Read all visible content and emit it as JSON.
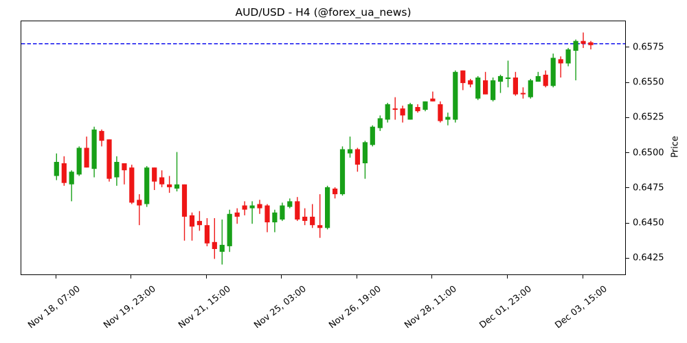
{
  "chart_data": {
    "type": "candlestick",
    "title": "AUD/USD - H4 (@forex_ua_news)",
    "symbol": "AUD/USD",
    "timeframe": "H4",
    "source_handle": "@forex_ua_news",
    "ylabel": "Price",
    "ylim": [
      0.6413,
      0.6594
    ],
    "y_ticks": [
      0.6425,
      0.645,
      0.6475,
      0.65,
      0.6525,
      0.655,
      0.6575
    ],
    "x_ticks": [
      {
        "candle_index": 0,
        "label": "Nov 18, 07:00"
      },
      {
        "candle_index": 10,
        "label": "Nov 19, 23:00"
      },
      {
        "candle_index": 20,
        "label": "Nov 21, 15:00"
      },
      {
        "candle_index": 30,
        "label": "Nov 25, 03:00"
      },
      {
        "candle_index": 40,
        "label": "Nov 26, 19:00"
      },
      {
        "candle_index": 50,
        "label": "Nov 28, 11:00"
      },
      {
        "candle_index": 60,
        "label": "Dec 01, 23:00"
      },
      {
        "candle_index": 70,
        "label": "Dec 03, 15:00"
      }
    ],
    "hline": {
      "price": 0.6578,
      "style": "dashed",
      "color": "#0d0dee"
    },
    "colors": {
      "up": "#18a018",
      "down": "#ee1616",
      "axis": "#000000"
    },
    "grid": false,
    "legend": null,
    "ohlc_order": "open,high,low,close",
    "candles": [
      [
        0.6484,
        0.65,
        0.6481,
        0.6494
      ],
      [
        0.6493,
        0.6498,
        0.6477,
        0.6479
      ],
      [
        0.6478,
        0.6488,
        0.6466,
        0.6487
      ],
      [
        0.6485,
        0.6505,
        0.6484,
        0.6504
      ],
      [
        0.6504,
        0.6512,
        0.649,
        0.649
      ],
      [
        0.6489,
        0.6519,
        0.6483,
        0.6517
      ],
      [
        0.6516,
        0.6517,
        0.6505,
        0.6509
      ],
      [
        0.651,
        0.651,
        0.648,
        0.6482
      ],
      [
        0.6483,
        0.6498,
        0.6477,
        0.6494
      ],
      [
        0.6493,
        0.6493,
        0.6478,
        0.6488
      ],
      [
        0.649,
        0.6492,
        0.6464,
        0.6465
      ],
      [
        0.6467,
        0.6471,
        0.6449,
        0.6463
      ],
      [
        0.6464,
        0.6491,
        0.6462,
        0.649
      ],
      [
        0.649,
        0.649,
        0.6474,
        0.648
      ],
      [
        0.6483,
        0.6488,
        0.6476,
        0.6478
      ],
      [
        0.6478,
        0.6484,
        0.6472,
        0.6476
      ],
      [
        0.6475,
        0.6501,
        0.6473,
        0.6478
      ],
      [
        0.6478,
        0.6478,
        0.6438,
        0.6455
      ],
      [
        0.6456,
        0.6458,
        0.6438,
        0.6448
      ],
      [
        0.6452,
        0.6459,
        0.6445,
        0.6449
      ],
      [
        0.6449,
        0.6454,
        0.6434,
        0.6436
      ],
      [
        0.6437,
        0.6454,
        0.6425,
        0.6432
      ],
      [
        0.643,
        0.6453,
        0.6421,
        0.6435
      ],
      [
        0.6434,
        0.646,
        0.643,
        0.6457
      ],
      [
        0.6458,
        0.6461,
        0.645,
        0.6455
      ],
      [
        0.6463,
        0.6466,
        0.6456,
        0.646
      ],
      [
        0.6461,
        0.6466,
        0.645,
        0.6463
      ],
      [
        0.6464,
        0.6467,
        0.6457,
        0.6461
      ],
      [
        0.6463,
        0.6464,
        0.6444,
        0.6451
      ],
      [
        0.6451,
        0.646,
        0.6444,
        0.6458
      ],
      [
        0.6453,
        0.6465,
        0.6452,
        0.6463
      ],
      [
        0.6462,
        0.6468,
        0.6461,
        0.6466
      ],
      [
        0.6466,
        0.6469,
        0.6452,
        0.6453
      ],
      [
        0.6455,
        0.6461,
        0.6449,
        0.6452
      ],
      [
        0.6455,
        0.6464,
        0.6447,
        0.6449
      ],
      [
        0.6449,
        0.6471,
        0.644,
        0.6447
      ],
      [
        0.6447,
        0.6477,
        0.6446,
        0.6476
      ],
      [
        0.6475,
        0.6476,
        0.6468,
        0.6471
      ],
      [
        0.6471,
        0.6505,
        0.647,
        0.6503
      ],
      [
        0.65,
        0.6512,
        0.6497,
        0.6503
      ],
      [
        0.6503,
        0.6504,
        0.6487,
        0.6492
      ],
      [
        0.6493,
        0.6509,
        0.6482,
        0.6508
      ],
      [
        0.6506,
        0.652,
        0.6505,
        0.6519
      ],
      [
        0.6518,
        0.6527,
        0.6516,
        0.6525
      ],
      [
        0.6524,
        0.6536,
        0.6522,
        0.6535
      ],
      [
        0.6532,
        0.654,
        0.6524,
        0.6531
      ],
      [
        0.6532,
        0.6534,
        0.6522,
        0.6527
      ],
      [
        0.6524,
        0.6536,
        0.6524,
        0.6535
      ],
      [
        0.6533,
        0.6535,
        0.6529,
        0.653
      ],
      [
        0.6531,
        0.6537,
        0.653,
        0.6537
      ],
      [
        0.6539,
        0.6544,
        0.6537,
        0.6537
      ],
      [
        0.6535,
        0.6537,
        0.6522,
        0.6523
      ],
      [
        0.6524,
        0.6529,
        0.652,
        0.6526
      ],
      [
        0.6524,
        0.6559,
        0.6522,
        0.6558
      ],
      [
        0.6559,
        0.6559,
        0.6545,
        0.655
      ],
      [
        0.6552,
        0.6553,
        0.6547,
        0.6549
      ],
      [
        0.6539,
        0.6555,
        0.6538,
        0.6554
      ],
      [
        0.6552,
        0.6558,
        0.6542,
        0.6542
      ],
      [
        0.6538,
        0.6554,
        0.6537,
        0.6552
      ],
      [
        0.6551,
        0.6556,
        0.6543,
        0.6555
      ],
      [
        0.6553,
        0.6566,
        0.6547,
        0.6554
      ],
      [
        0.6554,
        0.6558,
        0.6541,
        0.6542
      ],
      [
        0.6543,
        0.6547,
        0.6539,
        0.6542
      ],
      [
        0.654,
        0.6553,
        0.6539,
        0.6552
      ],
      [
        0.6551,
        0.6558,
        0.6551,
        0.6555
      ],
      [
        0.6556,
        0.6559,
        0.6547,
        0.6548
      ],
      [
        0.6548,
        0.6571,
        0.6547,
        0.6568
      ],
      [
        0.6567,
        0.6569,
        0.6554,
        0.6564
      ],
      [
        0.6564,
        0.6575,
        0.6562,
        0.6574
      ],
      [
        0.6573,
        0.6581,
        0.6552,
        0.658
      ],
      [
        0.658,
        0.6586,
        0.6575,
        0.6578
      ],
      [
        0.6579,
        0.658,
        0.6574,
        0.6577
      ]
    ]
  }
}
